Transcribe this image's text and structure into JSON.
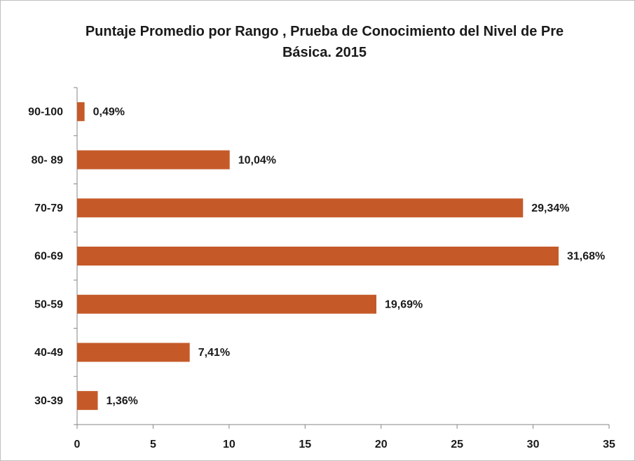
{
  "chart_data": {
    "type": "barh",
    "title": "Puntaje Promedio  por Rango , Prueba de Conocimiento del Nivel de Pre Básica. 2015",
    "categories": [
      "90-100",
      "80- 89",
      "70-79",
      "60-69",
      "50-59",
      "40-49",
      "30-39"
    ],
    "values": [
      0.49,
      10.04,
      29.34,
      31.68,
      19.69,
      7.41,
      1.36
    ],
    "value_labels": [
      "0,49%",
      "10,04%",
      "29,34%",
      "31,68%",
      "19,69%",
      "7,41%",
      "1,36%"
    ],
    "color": "#c55a28",
    "xlim": [
      0,
      35
    ],
    "xticks": [
      0,
      5,
      10,
      15,
      20,
      25,
      30,
      35
    ],
    "grid": false
  }
}
